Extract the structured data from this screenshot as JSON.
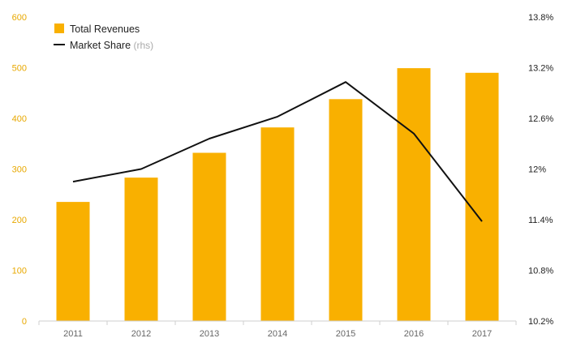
{
  "chart_data": {
    "type": "bar",
    "categories": [
      "2011",
      "2012",
      "2013",
      "2014",
      "2015",
      "2016",
      "2017"
    ],
    "series": [
      {
        "name": "Total Revenues",
        "type": "bar",
        "axis": "left",
        "color": "#f9b000",
        "values": [
          235,
          283,
          332,
          382,
          438,
          499,
          490
        ]
      },
      {
        "name": "Market Share",
        "name_suffix": "(rhs)",
        "type": "line",
        "axis": "right",
        "color": "#111111",
        "values": [
          11.85,
          12.0,
          12.36,
          12.62,
          13.03,
          12.42,
          11.38
        ]
      }
    ],
    "y_left": {
      "ylim": [
        0,
        600
      ],
      "ticks": [
        "0",
        "100",
        "200",
        "300",
        "400",
        "500",
        "600"
      ],
      "tick_color": "#e8a800"
    },
    "y_right": {
      "ylim": [
        10.2,
        13.8
      ],
      "ticks": [
        "10.2%",
        "10.8%",
        "11.4%",
        "12%",
        "12.6%",
        "13.2%",
        "13.8%"
      ]
    },
    "grid": false,
    "legend": "top-left"
  }
}
